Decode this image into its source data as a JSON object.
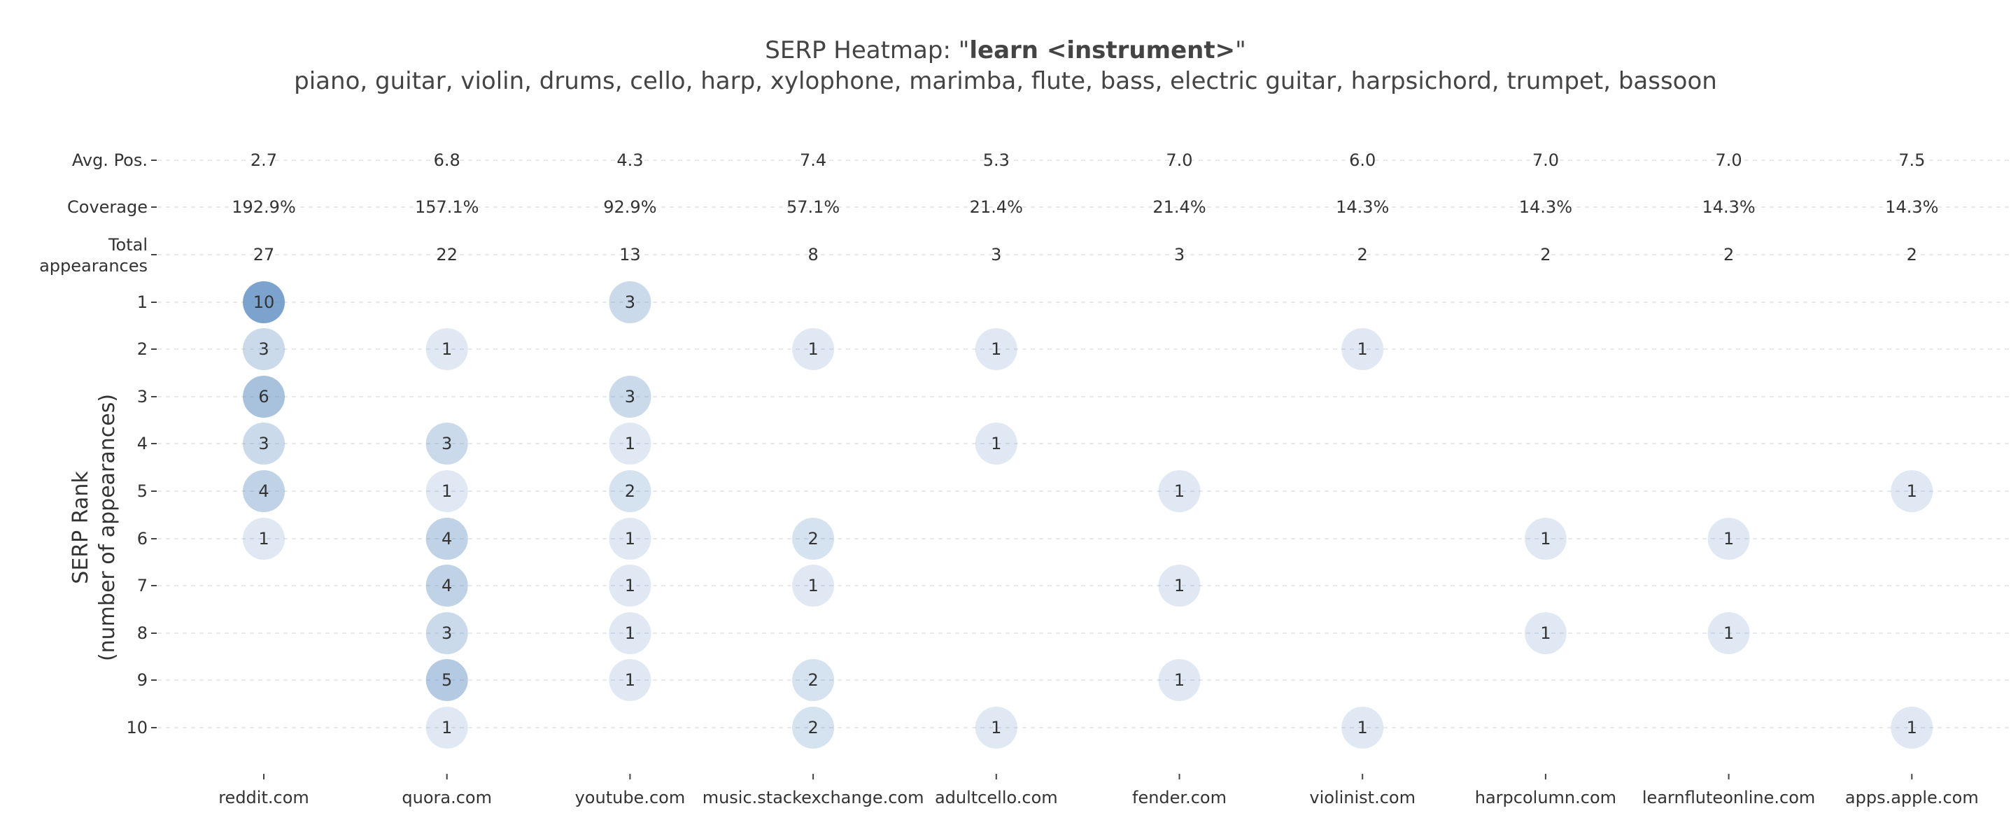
{
  "colors": {
    "bubble_base": "#5b8cc0",
    "text": "#333333",
    "title": "#444444",
    "grid": "#e6e9ee"
  },
  "chart_data": {
    "type": "bubble-heatmap",
    "title_prefix": "SERP Heatmap: \"",
    "title_bold": "learn <instrument>",
    "title_suffix": "\"",
    "subtitle": "piano, guitar, violin, drums, cello, harp, xylophone, marimba, flute, bass, electric guitar, harpsichord, trumpet, bassoon",
    "ylabel_line1": "SERP Rank",
    "ylabel_line2": "(number of appearances)",
    "xlabel": "",
    "grid": true,
    "domains": [
      "reddit.com",
      "quora.com",
      "youtube.com",
      "music.stackexchange.com",
      "adultcello.com",
      "fender.com",
      "violinist.com",
      "harpcolumn.com",
      "learnfluteonline.com",
      "apps.apple.com"
    ],
    "summary_rows": [
      {
        "label_lines": [
          "Avg. Pos."
        ],
        "values": [
          "2.7",
          "6.8",
          "4.3",
          "7.4",
          "5.3",
          "7.0",
          "6.0",
          "7.0",
          "7.0",
          "7.5"
        ]
      },
      {
        "label_lines": [
          "Coverage"
        ],
        "values": [
          "192.9%",
          "157.1%",
          "92.9%",
          "57.1%",
          "21.4%",
          "21.4%",
          "14.3%",
          "14.3%",
          "14.3%",
          "14.3%"
        ]
      },
      {
        "label_lines": [
          "Total",
          "appearances"
        ],
        "values": [
          "27",
          "22",
          "13",
          "8",
          "3",
          "3",
          "2",
          "2",
          "2",
          "2"
        ]
      }
    ],
    "ranks": [
      "1",
      "2",
      "3",
      "4",
      "5",
      "6",
      "7",
      "8",
      "9",
      "10"
    ],
    "counts": [
      [
        10,
        0,
        3,
        0,
        0,
        0,
        0,
        0,
        0,
        0
      ],
      [
        3,
        1,
        0,
        1,
        1,
        0,
        1,
        0,
        0,
        0
      ],
      [
        6,
        0,
        3,
        0,
        0,
        0,
        0,
        0,
        0,
        0
      ],
      [
        3,
        3,
        1,
        0,
        1,
        0,
        0,
        0,
        0,
        0
      ],
      [
        4,
        1,
        2,
        0,
        0,
        1,
        0,
        0,
        0,
        1
      ],
      [
        1,
        4,
        1,
        2,
        0,
        0,
        0,
        1,
        1,
        0
      ],
      [
        0,
        4,
        1,
        1,
        0,
        1,
        0,
        0,
        0,
        0
      ],
      [
        0,
        3,
        1,
        0,
        0,
        0,
        0,
        1,
        1,
        0
      ],
      [
        0,
        5,
        1,
        2,
        0,
        1,
        0,
        0,
        0,
        0
      ],
      [
        0,
        1,
        0,
        2,
        1,
        0,
        1,
        0,
        0,
        1
      ]
    ]
  }
}
